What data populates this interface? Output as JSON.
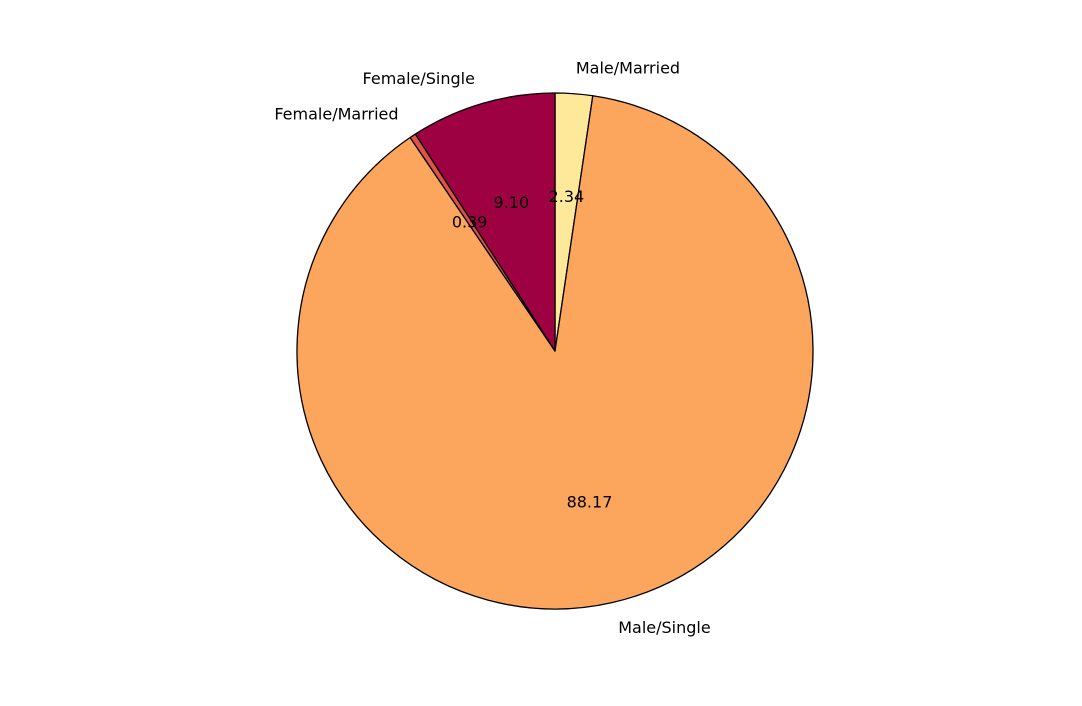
{
  "chart_data": {
    "type": "pie",
    "title": "",
    "start_angle_deg": 90,
    "direction": "clockwise",
    "slices": [
      {
        "label": "Male/Married",
        "value": 2.34,
        "display": "2.34",
        "color": "#fee899"
      },
      {
        "label": "Male/Single",
        "value": 88.17,
        "display": "88.17",
        "color": "#fca55d"
      },
      {
        "label": "Female/Married",
        "value": 0.39,
        "display": "0.39",
        "color": "#e2514a"
      },
      {
        "label": "Female/Single",
        "value": 9.1,
        "display": "9.10",
        "color": "#9e0142"
      }
    ],
    "edge_color": "#000000"
  }
}
